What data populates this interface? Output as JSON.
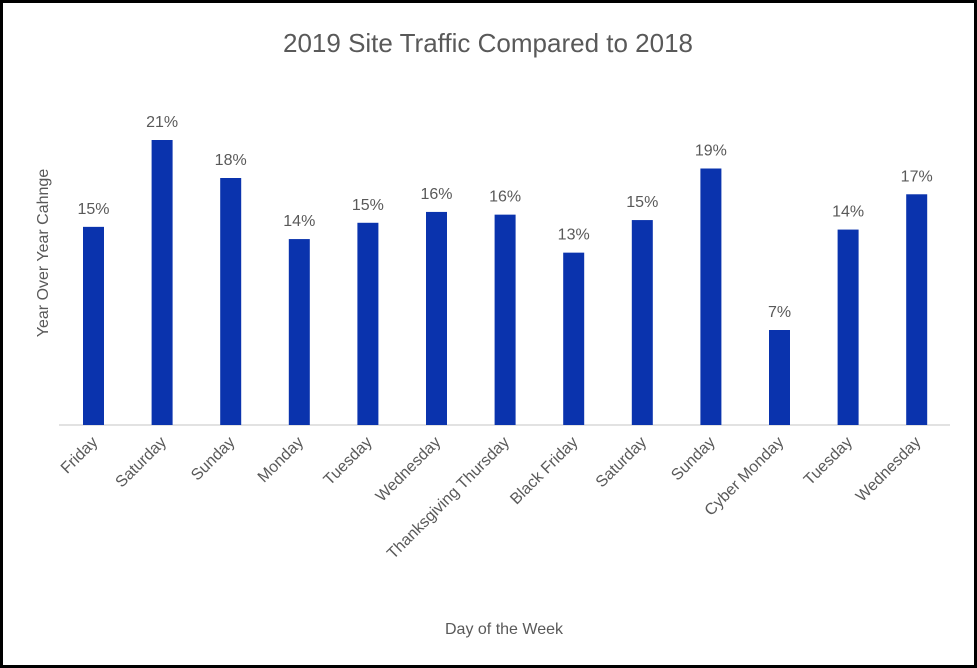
{
  "chart_data": {
    "type": "bar",
    "title": "2019 Site Traffic Compared to 2018",
    "xlabel": "Day of the Week",
    "ylabel": "Year Over Year Cahnge",
    "categories": [
      "Friday",
      "Saturday",
      "Sunday",
      "Monday",
      "Tuesday",
      "Wednesday",
      "Thanksgiving Thursday",
      "Black Friday",
      "Saturday",
      "Sunday",
      "Cyber Monday",
      "Tuesday",
      "Wednesday"
    ],
    "values": [
      14.6,
      21.0,
      18.2,
      13.7,
      14.9,
      15.7,
      15.5,
      12.7,
      15.1,
      18.9,
      7.0,
      14.4,
      17.0
    ],
    "data_labels": [
      "15%",
      "21%",
      "18%",
      "14%",
      "15%",
      "16%",
      "16%",
      "13%",
      "15%",
      "19%",
      "7%",
      "14%",
      "17%"
    ],
    "ylim": [
      0,
      21
    ],
    "grid": false,
    "legend": "none",
    "bar_color": "#0A33AD"
  }
}
